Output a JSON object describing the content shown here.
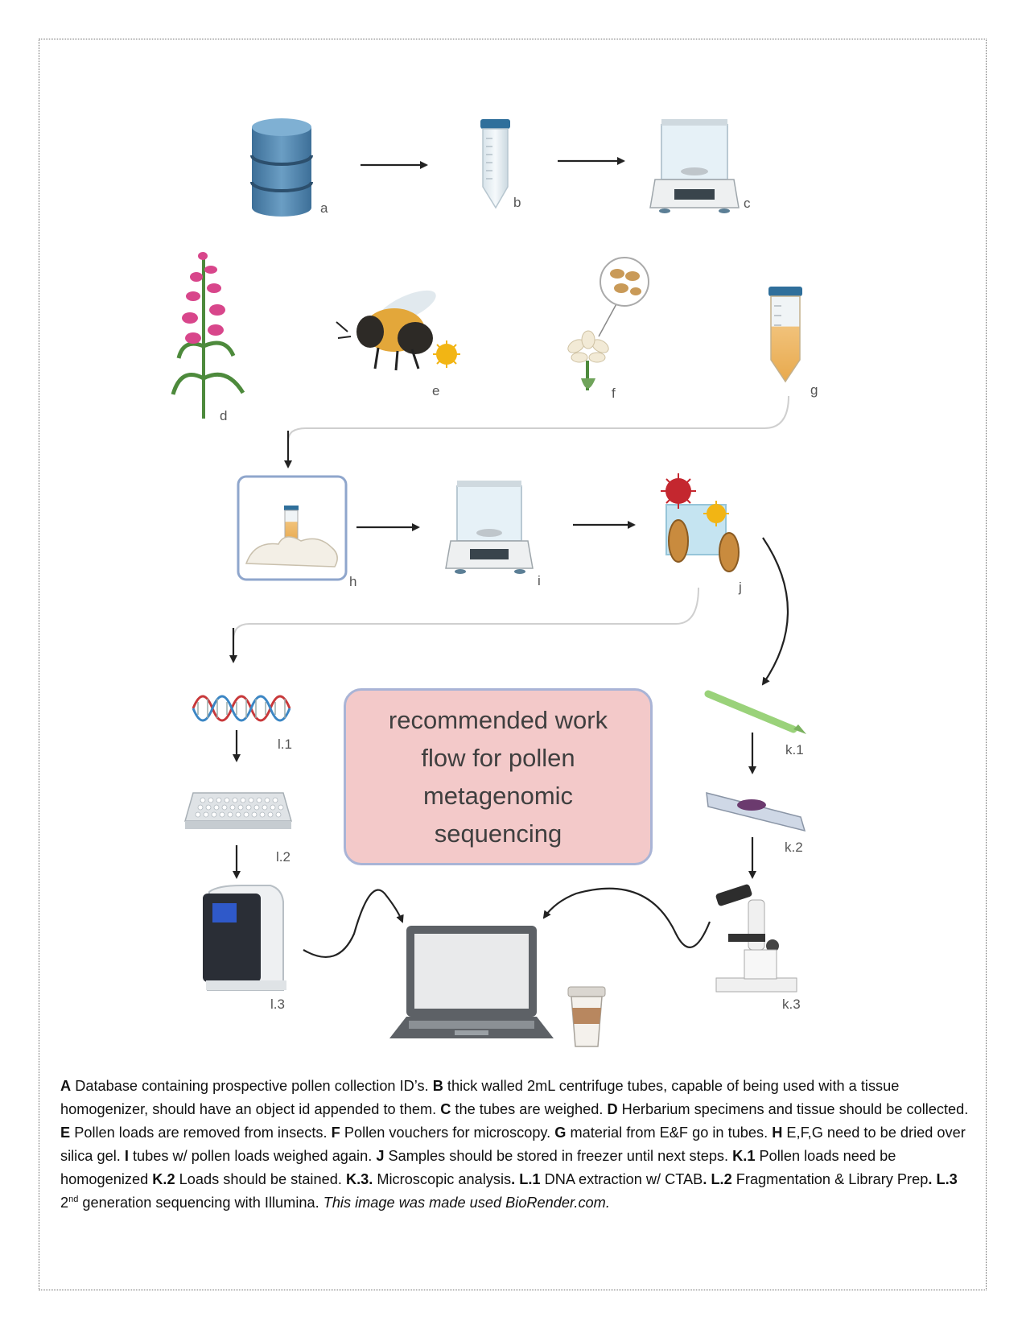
{
  "diagram": {
    "title": "recommended work\nflow for pollen\nmetagenomic\nsequencing",
    "labels": {
      "a": "a",
      "b": "b",
      "c": "c",
      "d": "d",
      "e": "e",
      "f": "f",
      "g": "g",
      "h": "h",
      "i": "i",
      "j": "j",
      "l1": "l.1",
      "l2": "l.2",
      "l3": "l.3",
      "k1": "k.1",
      "k2": "k.2",
      "k3": "k.3"
    }
  },
  "caption": {
    "a_key": "A",
    "a_text": " Database containing prospective pollen collection ID’s. ",
    "b_key": "B",
    "b_text": " thick walled 2mL centrifuge tubes, capable of being used with a tissue homogenizer, should have an object id appended to them. ",
    "c_key": "C",
    "c_text": " the tubes are weighed. ",
    "d_key": "D",
    "d_text": " Herbarium specimens and tissue should be collected. ",
    "e_key": "E",
    "e_text": " Pollen loads are removed from insects. ",
    "f_key": "F",
    "f_text": " Pollen vouchers for microscopy. ",
    "g_key": "G",
    "g_text": " material from E&F go in tubes. ",
    "h_key": "H",
    "h_text": " E,F,G need to be dried over silica gel. ",
    "i_key": "I",
    "i_text": " tubes w/ pollen loads weighed again. ",
    "j_key": "J",
    "j_text": " Samples should be stored in freezer until next steps. ",
    "k1_key": "K.1",
    "k1_text": " Pollen loads need be homogenized ",
    "k2_key": "K.2",
    "k2_text": " Loads should be stained. ",
    "k3_key": "K.3.",
    "k3_text": " Microscopic analysis",
    "dot1": ". ",
    "l1_key": "L.1",
    "l1_text": " DNA extraction w/ CTAB",
    "dot2": ". ",
    "l2_key": "L.2",
    "l2_text": " Fragmentation & Library Prep",
    "dot3": ". ",
    "l3_key": "L.3",
    "l3_text_pre": " 2",
    "l3_sup": "nd",
    "l3_text_post": " generation sequencing with Illumina. ",
    "credit": "This image was made used BioRender.com."
  },
  "colors": {
    "database": "#4a7fa8",
    "title_box_fill": "#f3c9c9",
    "title_box_border": "#a9b4d6",
    "arrow": "#222222",
    "arrow_faded": "#cfcfcf"
  }
}
